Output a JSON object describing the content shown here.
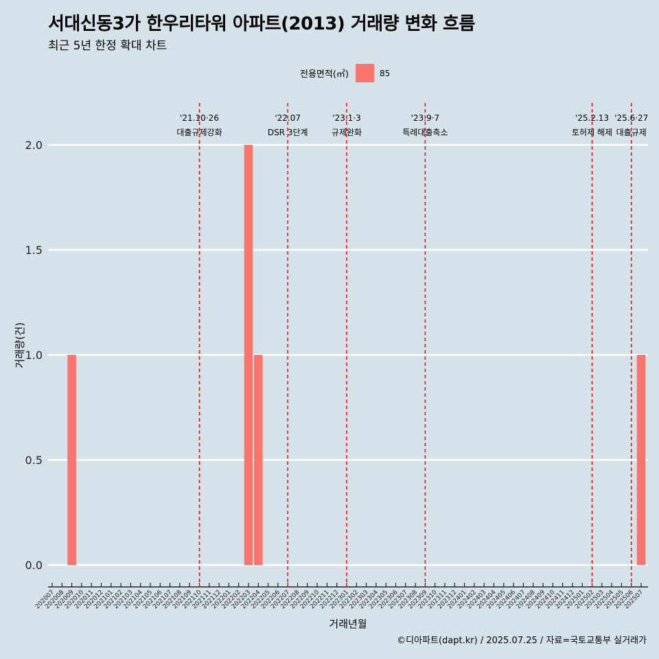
{
  "title": "서대신동3가 한우리타워 아파트(2013) 거래량 변화 흐름",
  "subtitle": "최근 5년 한정 확대 차트",
  "caption": "©디아파트(dapt.kr) / 2025.07.25 / 자료=국토교통부 실거래가",
  "legend": {
    "title": "전용면적(㎡)",
    "items": [
      {
        "name": "85",
        "color": "#f8766d"
      }
    ]
  },
  "colors": {
    "background": "#d6e2e9",
    "bar": "#f8766d",
    "event_line": "#ff0000",
    "grid": "#ffffff"
  },
  "chart_data": {
    "type": "bar",
    "xlabel": "거래년월",
    "ylabel": "거래량(건)",
    "ylim": [
      0,
      2
    ],
    "yticks": [
      "0.0",
      "0.5",
      "1.0",
      "1.5",
      "2.0"
    ],
    "grid": true,
    "legend_position": "top",
    "categories": [
      "202007",
      "202008",
      "202009",
      "202010",
      "202011",
      "202012",
      "202101",
      "202102",
      "202103",
      "202104",
      "202105",
      "202106",
      "202107",
      "202108",
      "202109",
      "202110",
      "202111",
      "202112",
      "202201",
      "202202",
      "202203",
      "202204",
      "202205",
      "202206",
      "202207",
      "202208",
      "202209",
      "202210",
      "202211",
      "202212",
      "202301",
      "202302",
      "202303",
      "202304",
      "202305",
      "202306",
      "202307",
      "202308",
      "202309",
      "202310",
      "202311",
      "202312",
      "202401",
      "202402",
      "202403",
      "202404",
      "202405",
      "202406",
      "202407",
      "202408",
      "202409",
      "202410",
      "202411",
      "202412",
      "202501",
      "202502",
      "202503",
      "202504",
      "202505",
      "202506",
      "202507"
    ],
    "series": [
      {
        "name": "85",
        "values": [
          0,
          0,
          1,
          0,
          0,
          0,
          0,
          0,
          0,
          0,
          0,
          0,
          0,
          0,
          0,
          0,
          0,
          0,
          0,
          0,
          2,
          1,
          0,
          0,
          0,
          0,
          0,
          0,
          0,
          0,
          0,
          0,
          0,
          0,
          0,
          0,
          0,
          0,
          0,
          0,
          0,
          0,
          0,
          0,
          0,
          0,
          0,
          0,
          0,
          0,
          0,
          0,
          0,
          0,
          0,
          0,
          0,
          0,
          0,
          0,
          1
        ]
      }
    ],
    "events": [
      {
        "x": "202110",
        "date": "'21.10·26",
        "label": "대출규제강화"
      },
      {
        "x": "202207",
        "date": "'22.07",
        "label": "DSR 3단계"
      },
      {
        "x": "202301",
        "date": "'23.1·3",
        "label": "규제완화"
      },
      {
        "x": "202309",
        "date": "'23.9·7",
        "label": "특례대출축소"
      },
      {
        "x": "202502",
        "date": "'25.2.13",
        "label": "토허제 해제"
      },
      {
        "x": "202506",
        "date": "'25.6·27",
        "label": "대출규제"
      }
    ]
  }
}
